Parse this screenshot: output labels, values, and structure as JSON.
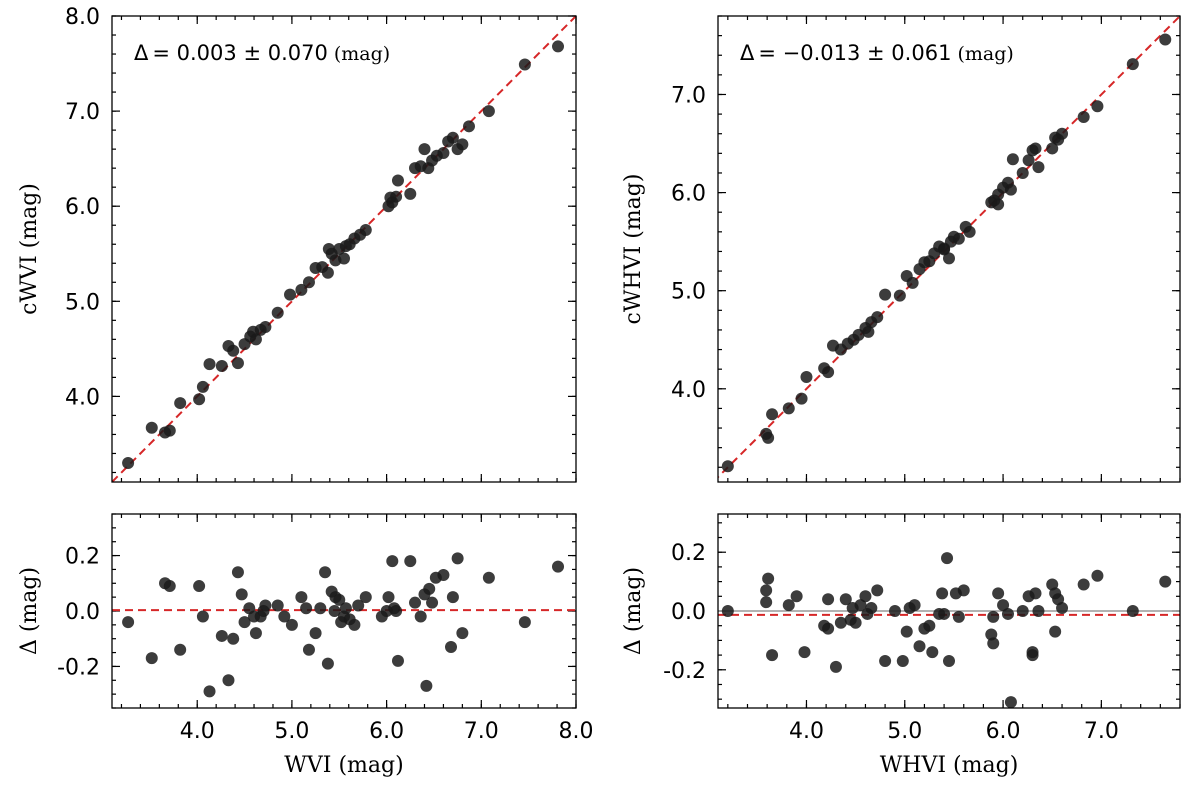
{
  "colors": {
    "points": "#1a1a1a",
    "fit_line": "#d62728",
    "zero_line": "#999999"
  },
  "chart_data": [
    {
      "id": "left-top",
      "type": "scatter",
      "xlabel": "",
      "ylabel": "cWVI (mag)",
      "xlim": [
        3.1,
        8.0
      ],
      "ylim": [
        3.1,
        8.0
      ],
      "xticks": [],
      "yticks": [
        {
          "v": 4.0,
          "label": "4.0"
        },
        {
          "v": 5.0,
          "label": "5.0"
        },
        {
          "v": 6.0,
          "label": "6.0"
        },
        {
          "v": 7.0,
          "label": "7.0"
        },
        {
          "v": 8.0,
          "label": "8.0"
        }
      ],
      "annotation": {
        "delta_symbol": "Δ",
        "value": "= 0.003 ± 0.070",
        "unit": "(mag)"
      },
      "reference_line": "y=x",
      "points": [
        [
          3.27,
          3.3
        ],
        [
          3.52,
          3.67
        ],
        [
          3.66,
          3.62
        ],
        [
          3.71,
          3.64
        ],
        [
          3.82,
          3.93
        ],
        [
          4.02,
          3.97
        ],
        [
          4.06,
          4.1
        ],
        [
          4.13,
          4.34
        ],
        [
          4.26,
          4.32
        ],
        [
          4.33,
          4.53
        ],
        [
          4.38,
          4.48
        ],
        [
          4.43,
          4.35
        ],
        [
          4.5,
          4.55
        ],
        [
          4.56,
          4.63
        ],
        [
          4.62,
          4.6
        ],
        [
          4.67,
          4.7
        ],
        [
          4.72,
          4.73
        ],
        [
          4.85,
          4.88
        ],
        [
          4.98,
          5.07
        ],
        [
          5.1,
          5.12
        ],
        [
          5.18,
          5.2
        ],
        [
          5.25,
          5.35
        ],
        [
          5.32,
          5.36
        ],
        [
          5.38,
          5.3
        ],
        [
          5.42,
          5.5
        ],
        [
          5.5,
          5.55
        ],
        [
          5.55,
          5.45
        ],
        [
          5.57,
          5.58
        ],
        [
          5.61,
          5.6
        ],
        [
          5.66,
          5.66
        ],
        [
          5.72,
          5.7
        ],
        [
          5.78,
          5.75
        ],
        [
          6.02,
          6.0
        ],
        [
          6.06,
          6.04
        ],
        [
          6.1,
          6.1
        ],
        [
          6.12,
          6.27
        ],
        [
          6.25,
          6.13
        ],
        [
          6.3,
          6.4
        ],
        [
          6.36,
          6.42
        ],
        [
          6.4,
          6.6
        ],
        [
          6.44,
          6.4
        ],
        [
          6.48,
          6.48
        ],
        [
          6.53,
          6.53
        ],
        [
          6.6,
          6.56
        ],
        [
          6.65,
          6.68
        ],
        [
          6.7,
          6.72
        ],
        [
          6.75,
          6.6
        ],
        [
          6.8,
          6.65
        ],
        [
          6.87,
          6.84
        ],
        [
          7.08,
          7.0
        ],
        [
          7.46,
          7.49
        ],
        [
          7.81,
          7.68
        ],
        [
          5.39,
          5.55
        ],
        [
          5.46,
          5.43
        ],
        [
          4.59,
          4.68
        ],
        [
          6.04,
          6.09
        ]
      ]
    },
    {
      "id": "left-bottom",
      "type": "scatter",
      "xlabel": "WVI (mag)",
      "ylabel": "Δ (mag)",
      "xlim": [
        3.1,
        8.0
      ],
      "ylim": [
        -0.35,
        0.35
      ],
      "xticks": [
        {
          "v": 4.0,
          "label": "4.0"
        },
        {
          "v": 5.0,
          "label": "5.0"
        },
        {
          "v": 6.0,
          "label": "6.0"
        },
        {
          "v": 7.0,
          "label": "7.0"
        },
        {
          "v": 8.0,
          "label": "8.0"
        }
      ],
      "yticks": [
        {
          "v": 0.2,
          "label": "0.2"
        },
        {
          "v": 0.0,
          "label": "0.0"
        },
        {
          "v": -0.2,
          "label": "-0.2"
        }
      ],
      "reference_line": "y=0.003",
      "points": [
        [
          3.27,
          -0.04
        ],
        [
          3.52,
          -0.17
        ],
        [
          3.66,
          0.1
        ],
        [
          3.71,
          0.09
        ],
        [
          3.82,
          -0.14
        ],
        [
          4.02,
          0.09
        ],
        [
          4.06,
          -0.02
        ],
        [
          4.13,
          -0.29
        ],
        [
          4.26,
          -0.09
        ],
        [
          4.33,
          -0.25
        ],
        [
          4.38,
          -0.1
        ],
        [
          4.43,
          0.14
        ],
        [
          4.47,
          0.06
        ],
        [
          4.5,
          -0.04
        ],
        [
          4.55,
          0.01
        ],
        [
          4.6,
          -0.02
        ],
        [
          4.62,
          -0.08
        ],
        [
          4.67,
          -0.02
        ],
        [
          4.72,
          0.02
        ],
        [
          4.85,
          0.02
        ],
        [
          4.92,
          -0.02
        ],
        [
          5.0,
          -0.05
        ],
        [
          5.1,
          0.05
        ],
        [
          5.15,
          0.01
        ],
        [
          5.18,
          -0.14
        ],
        [
          5.25,
          -0.08
        ],
        [
          5.3,
          0.01
        ],
        [
          5.35,
          0.14
        ],
        [
          5.38,
          -0.19
        ],
        [
          5.42,
          0.07
        ],
        [
          5.46,
          0.05
        ],
        [
          5.5,
          0.04
        ],
        [
          5.52,
          -0.04
        ],
        [
          5.55,
          -0.02
        ],
        [
          5.57,
          0.01
        ],
        [
          5.61,
          -0.03
        ],
        [
          5.66,
          -0.05
        ],
        [
          5.7,
          0.02
        ],
        [
          5.78,
          0.05
        ],
        [
          5.95,
          -0.02
        ],
        [
          6.02,
          0.05
        ],
        [
          6.06,
          0.18
        ],
        [
          6.08,
          0.01
        ],
        [
          6.12,
          -0.18
        ],
        [
          6.25,
          0.18
        ],
        [
          6.3,
          0.03
        ],
        [
          6.36,
          -0.02
        ],
        [
          6.4,
          0.06
        ],
        [
          6.42,
          -0.27
        ],
        [
          6.45,
          0.08
        ],
        [
          6.48,
          0.03
        ],
        [
          6.52,
          0.12
        ],
        [
          6.6,
          0.13
        ],
        [
          6.68,
          -0.13
        ],
        [
          6.7,
          0.05
        ],
        [
          6.75,
          0.19
        ],
        [
          6.8,
          -0.08
        ],
        [
          7.08,
          0.12
        ],
        [
          7.46,
          -0.04
        ],
        [
          7.81,
          0.16
        ],
        [
          6.1,
          0.0
        ],
        [
          5.45,
          0.0
        ],
        [
          4.7,
          0.0
        ],
        [
          6.0,
          0.0
        ]
      ]
    },
    {
      "id": "right-top",
      "type": "scatter",
      "xlabel": "",
      "ylabel": "cWHVI (mag)",
      "xlim": [
        3.1,
        7.8
      ],
      "ylim": [
        3.05,
        7.8
      ],
      "xticks": [],
      "yticks": [
        {
          "v": 4.0,
          "label": "4.0"
        },
        {
          "v": 5.0,
          "label": "5.0"
        },
        {
          "v": 6.0,
          "label": "6.0"
        },
        {
          "v": 7.0,
          "label": "7.0"
        }
      ],
      "annotation": {
        "delta_symbol": "Δ",
        "value": "= −0.013 ± 0.061",
        "unit": "(mag)"
      },
      "reference_line": "y=x",
      "points": [
        [
          3.2,
          3.21
        ],
        [
          3.59,
          3.54
        ],
        [
          3.61,
          3.5
        ],
        [
          3.65,
          3.74
        ],
        [
          3.82,
          3.8
        ],
        [
          3.95,
          3.9
        ],
        [
          4.0,
          4.12
        ],
        [
          4.18,
          4.21
        ],
        [
          4.22,
          4.17
        ],
        [
          4.27,
          4.44
        ],
        [
          4.35,
          4.4
        ],
        [
          4.42,
          4.46
        ],
        [
          4.48,
          4.5
        ],
        [
          4.53,
          4.55
        ],
        [
          4.6,
          4.62
        ],
        [
          4.66,
          4.68
        ],
        [
          4.72,
          4.73
        ],
        [
          4.8,
          4.96
        ],
        [
          4.95,
          4.95
        ],
        [
          5.02,
          5.15
        ],
        [
          5.08,
          5.08
        ],
        [
          5.15,
          5.22
        ],
        [
          5.2,
          5.29
        ],
        [
          5.25,
          5.3
        ],
        [
          5.3,
          5.38
        ],
        [
          5.35,
          5.45
        ],
        [
          5.4,
          5.43
        ],
        [
          5.45,
          5.33
        ],
        [
          5.47,
          5.5
        ],
        [
          5.5,
          5.55
        ],
        [
          5.55,
          5.53
        ],
        [
          5.62,
          5.65
        ],
        [
          5.66,
          5.6
        ],
        [
          5.88,
          5.9
        ],
        [
          5.91,
          5.92
        ],
        [
          5.95,
          5.98
        ],
        [
          6.0,
          6.05
        ],
        [
          6.05,
          6.1
        ],
        [
          6.1,
          6.34
        ],
        [
          6.2,
          6.2
        ],
        [
          6.26,
          6.33
        ],
        [
          6.3,
          6.43
        ],
        [
          6.33,
          6.45
        ],
        [
          6.36,
          6.26
        ],
        [
          6.5,
          6.45
        ],
        [
          6.53,
          6.56
        ],
        [
          6.56,
          6.54
        ],
        [
          6.6,
          6.6
        ],
        [
          6.82,
          6.77
        ],
        [
          6.96,
          6.88
        ],
        [
          7.32,
          7.31
        ],
        [
          7.65,
          7.56
        ],
        [
          5.4,
          5.42
        ],
        [
          4.63,
          4.58
        ],
        [
          5.95,
          5.88
        ],
        [
          6.08,
          6.03
        ]
      ]
    },
    {
      "id": "right-bottom",
      "type": "scatter",
      "xlabel": "WHVI (mag)",
      "ylabel": "Δ (mag)",
      "xlim": [
        3.1,
        7.8
      ],
      "ylim": [
        -0.33,
        0.33
      ],
      "xticks": [
        {
          "v": 4.0,
          "label": "4.0"
        },
        {
          "v": 5.0,
          "label": "5.0"
        },
        {
          "v": 6.0,
          "label": "6.0"
        },
        {
          "v": 7.0,
          "label": "7.0"
        }
      ],
      "yticks": [
        {
          "v": 0.2,
          "label": "0.2"
        },
        {
          "v": 0.0,
          "label": "0.0"
        },
        {
          "v": -0.2,
          "label": "-0.2"
        }
      ],
      "reference_line": "y=-0.013",
      "zero_line": 0.0,
      "points": [
        [
          3.2,
          0.0
        ],
        [
          3.59,
          0.07
        ],
        [
          3.61,
          0.11
        ],
        [
          3.59,
          0.03
        ],
        [
          3.65,
          -0.15
        ],
        [
          3.82,
          0.02
        ],
        [
          3.9,
          0.05
        ],
        [
          3.98,
          -0.14
        ],
        [
          4.18,
          -0.05
        ],
        [
          4.22,
          0.04
        ],
        [
          4.22,
          -0.06
        ],
        [
          4.3,
          -0.19
        ],
        [
          4.35,
          -0.04
        ],
        [
          4.4,
          0.04
        ],
        [
          4.45,
          -0.03
        ],
        [
          4.47,
          0.01
        ],
        [
          4.5,
          -0.04
        ],
        [
          4.55,
          0.02
        ],
        [
          4.6,
          0.05
        ],
        [
          4.62,
          -0.01
        ],
        [
          4.66,
          0.01
        ],
        [
          4.72,
          0.07
        ],
        [
          4.8,
          -0.17
        ],
        [
          4.9,
          0.0
        ],
        [
          4.98,
          -0.17
        ],
        [
          5.02,
          -0.07
        ],
        [
          5.05,
          0.01
        ],
        [
          5.1,
          0.02
        ],
        [
          5.15,
          -0.12
        ],
        [
          5.2,
          -0.06
        ],
        [
          5.25,
          -0.05
        ],
        [
          5.28,
          -0.14
        ],
        [
          5.35,
          -0.01
        ],
        [
          5.38,
          0.06
        ],
        [
          5.4,
          -0.01
        ],
        [
          5.43,
          0.18
        ],
        [
          5.45,
          -0.17
        ],
        [
          5.52,
          0.06
        ],
        [
          5.55,
          -0.02
        ],
        [
          5.6,
          0.07
        ],
        [
          5.88,
          -0.08
        ],
        [
          5.9,
          -0.11
        ],
        [
          5.95,
          0.06
        ],
        [
          6.05,
          -0.01
        ],
        [
          6.08,
          -0.31
        ],
        [
          6.2,
          0.0
        ],
        [
          6.26,
          0.05
        ],
        [
          6.3,
          -0.14
        ],
        [
          6.3,
          -0.15
        ],
        [
          6.33,
          0.06
        ],
        [
          6.36,
          0.0
        ],
        [
          6.5,
          0.09
        ],
        [
          6.53,
          0.06
        ],
        [
          6.56,
          0.04
        ],
        [
          6.53,
          -0.07
        ],
        [
          6.6,
          0.01
        ],
        [
          6.82,
          0.09
        ],
        [
          6.96,
          0.12
        ],
        [
          7.32,
          0.0
        ],
        [
          7.65,
          0.1
        ],
        [
          5.9,
          -0.02
        ],
        [
          6.0,
          0.02
        ]
      ]
    }
  ]
}
